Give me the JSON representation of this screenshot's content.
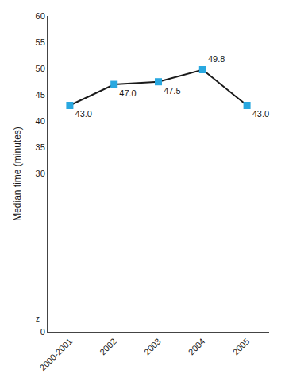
{
  "chart_data": {
    "type": "line",
    "categories": [
      "2000-2001",
      "2002",
      "2003",
      "2004",
      "2005"
    ],
    "values": [
      43.0,
      47.0,
      47.5,
      49.8,
      43.0
    ],
    "value_labels": [
      "43.0",
      "47.0",
      "47.5",
      "49.8",
      "43.0"
    ],
    "data_labels": true,
    "color": "#1a1a1a",
    "colors": [
      "#29a8e0",
      "#29a8e0",
      "#29a8e0",
      "#29a8e0",
      "#29a8e0"
    ],
    "marker": "square",
    "ylabel": "Median time (minutes)",
    "ylim": [
      0,
      60
    ],
    "yticks": [
      0,
      30,
      35,
      40,
      45,
      50,
      55,
      60
    ],
    "grid": false,
    "annotations": [
      {
        "text": "z",
        "y": 2.5
      }
    ]
  }
}
